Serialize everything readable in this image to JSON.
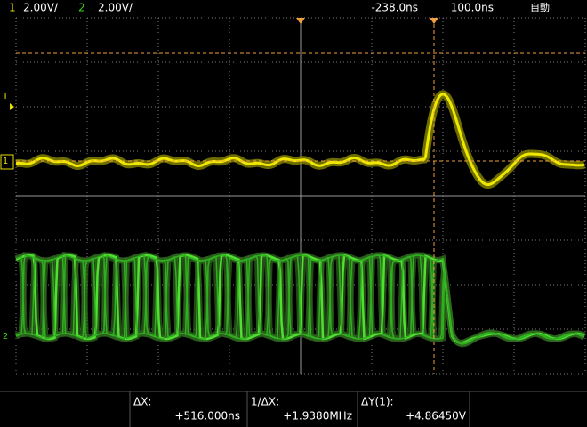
{
  "header": {
    "ch1_label": "1",
    "ch1_scale": "2.00V/",
    "ch2_label": "2",
    "ch2_scale": "2.00V/",
    "delay": "-238.0ns",
    "timebase": "100.0ns",
    "mode": "自動"
  },
  "markers": {
    "trigger": "T",
    "ch1": "1",
    "ch2": "2"
  },
  "measurements": [
    {
      "label": "ΔX:",
      "value": "+516.000ns"
    },
    {
      "label": "1/ΔX:",
      "value": "+1.9380MHz"
    },
    {
      "label": "ΔY(1):",
      "value": "+4.86450V"
    }
  ]
}
